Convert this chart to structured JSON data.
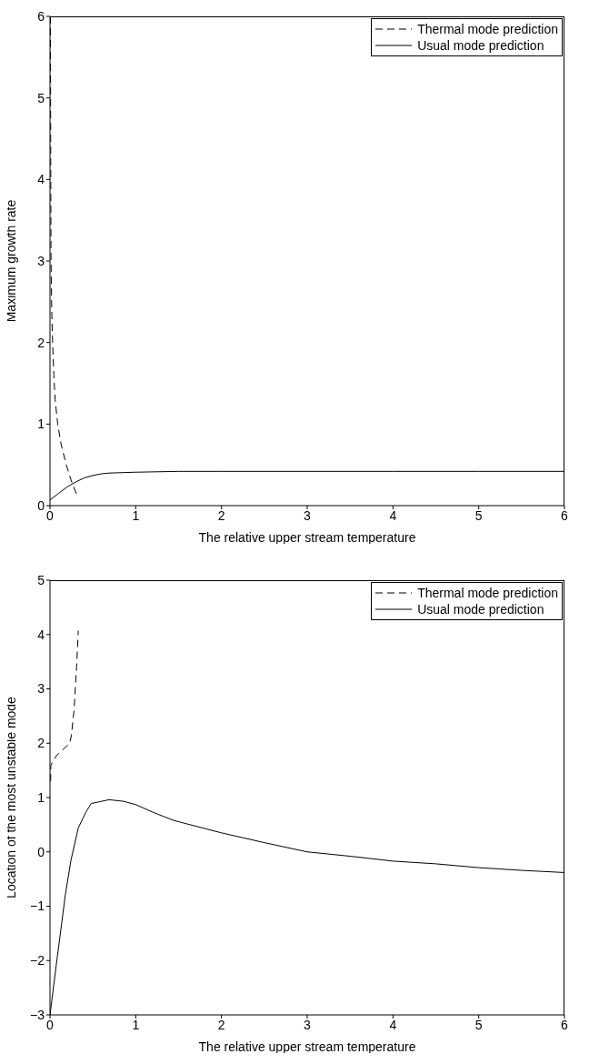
{
  "chart_data": [
    {
      "type": "line",
      "xlabel": "The relative upper stream temperature",
      "ylabel": "Maximum growth rate",
      "xlim": [
        0,
        6
      ],
      "ylim": [
        0,
        6
      ],
      "xticks": [
        0,
        1,
        2,
        3,
        4,
        5,
        6
      ],
      "yticks": [
        0,
        1,
        2,
        3,
        4,
        5,
        6
      ],
      "legend": "top right",
      "series": [
        {
          "name": "Thermal mode prediction",
          "color": "#000000",
          "line_style": "dashed",
          "x": [
            0.005,
            0.008,
            0.012,
            0.02,
            0.03,
            0.045,
            0.06,
            0.09,
            0.13,
            0.19,
            0.25,
            0.31
          ],
          "values": [
            6,
            4.5,
            3,
            2.4,
            2,
            1.6,
            1.3,
            1,
            0.75,
            0.5,
            0.3,
            0.14
          ]
        },
        {
          "name": "Usual mode prediction",
          "color": "#000000",
          "line_style": "solid",
          "x": [
            0,
            0.1,
            0.2,
            0.3,
            0.4,
            0.5,
            0.6,
            0.7,
            1,
            1.5,
            2,
            3,
            4,
            5,
            6
          ],
          "values": [
            0.07,
            0.15,
            0.23,
            0.29,
            0.34,
            0.37,
            0.39,
            0.4,
            0.41,
            0.42,
            0.42,
            0.42,
            0.42,
            0.42,
            0.42
          ]
        }
      ]
    },
    {
      "type": "line",
      "xlabel": "The relative upper stream temperature",
      "ylabel": "Location of the most unstable mode",
      "xlim": [
        0,
        6
      ],
      "ylim": [
        -3,
        5
      ],
      "xticks": [
        0,
        1,
        2,
        3,
        4,
        5,
        6
      ],
      "yticks": [
        -3,
        -2,
        -1,
        0,
        1,
        2,
        3,
        4,
        5
      ],
      "legend": "top right",
      "series": [
        {
          "name": "Thermal mode prediction",
          "color": "#000000",
          "line_style": "dashed",
          "x": [
            0.007,
            0.01,
            0.075,
            0.23,
            0.25,
            0.28,
            0.31,
            0.33
          ],
          "values": [
            1.3,
            1.6,
            1.77,
            2,
            2.15,
            2.6,
            3.4,
            4.07
          ]
        },
        {
          "name": "Usual mode prediction",
          "color": "#000000",
          "line_style": "solid",
          "x": [
            0,
            0.075,
            0.18,
            0.245,
            0.33,
            0.415,
            0.48,
            0.69,
            0.86,
            1,
            1.2,
            1.44,
            2,
            2.5,
            3,
            3.5,
            4,
            4.5,
            5,
            5.5,
            6
          ],
          "values": [
            -3,
            -2.06,
            -0.78,
            -0.15,
            0.44,
            0.72,
            0.89,
            0.96,
            0.93,
            0.87,
            0.73,
            0.58,
            0.35,
            0.17,
            0,
            -0.08,
            -0.17,
            -0.22,
            -0.29,
            -0.34,
            -0.38
          ]
        }
      ]
    }
  ]
}
